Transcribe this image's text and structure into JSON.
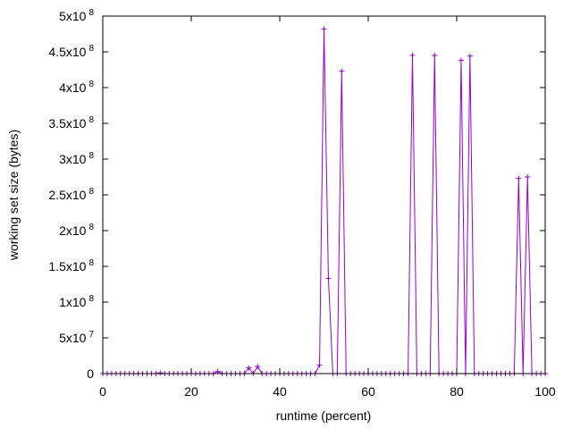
{
  "chart_data": {
    "type": "line",
    "title": "",
    "xlabel": "runtime (percent)",
    "ylabel": "working set size (bytes)",
    "xlim": [
      0,
      100
    ],
    "ylim": [
      0,
      500000000
    ],
    "x_ticks": [
      {
        "value": 0,
        "label": "0"
      },
      {
        "value": 20,
        "label": "20"
      },
      {
        "value": 40,
        "label": "40"
      },
      {
        "value": 60,
        "label": "60"
      },
      {
        "value": 80,
        "label": "80"
      },
      {
        "value": 100,
        "label": "100"
      }
    ],
    "y_ticks": [
      {
        "value": 0,
        "mant": "0",
        "exp": ""
      },
      {
        "value": 50000000,
        "mant": "5x10",
        "exp": "7"
      },
      {
        "value": 100000000,
        "mant": "1x10",
        "exp": "8"
      },
      {
        "value": 150000000,
        "mant": "1.5x10",
        "exp": "8"
      },
      {
        "value": 200000000,
        "mant": "2x10",
        "exp": "8"
      },
      {
        "value": 250000000,
        "mant": "2.5x10",
        "exp": "8"
      },
      {
        "value": 300000000,
        "mant": "3x10",
        "exp": "8"
      },
      {
        "value": 350000000,
        "mant": "3.5x10",
        "exp": "8"
      },
      {
        "value": 400000000,
        "mant": "4x10",
        "exp": "8"
      },
      {
        "value": 450000000,
        "mant": "4.5x10",
        "exp": "8"
      },
      {
        "value": 500000000,
        "mant": "5x10",
        "exp": "8"
      }
    ],
    "grid": false,
    "legend": "none",
    "series": [
      {
        "color": "#9400d3",
        "marker": "plus",
        "points": [
          [
            0,
            0
          ],
          [
            1,
            0
          ],
          [
            2,
            0
          ],
          [
            3,
            0
          ],
          [
            4,
            0
          ],
          [
            5,
            0
          ],
          [
            6,
            0
          ],
          [
            7,
            0
          ],
          [
            8,
            0
          ],
          [
            9,
            0
          ],
          [
            10,
            0
          ],
          [
            11,
            0
          ],
          [
            12,
            0
          ],
          [
            13,
            1000000
          ],
          [
            14,
            0
          ],
          [
            15,
            0
          ],
          [
            16,
            0
          ],
          [
            17,
            0
          ],
          [
            18,
            0
          ],
          [
            19,
            0
          ],
          [
            20,
            0
          ],
          [
            21,
            0
          ],
          [
            22,
            0
          ],
          [
            23,
            0
          ],
          [
            24,
            0
          ],
          [
            25,
            0
          ],
          [
            26,
            3000000
          ],
          [
            27,
            0
          ],
          [
            28,
            0
          ],
          [
            29,
            0
          ],
          [
            30,
            0
          ],
          [
            31,
            0
          ],
          [
            32,
            0
          ],
          [
            33,
            8000000
          ],
          [
            34,
            0
          ],
          [
            35,
            10000000
          ],
          [
            36,
            0
          ],
          [
            37,
            0
          ],
          [
            38,
            0
          ],
          [
            39,
            0
          ],
          [
            40,
            0
          ],
          [
            41,
            0
          ],
          [
            42,
            0
          ],
          [
            43,
            0
          ],
          [
            44,
            0
          ],
          [
            45,
            0
          ],
          [
            46,
            0
          ],
          [
            47,
            0
          ],
          [
            48,
            0
          ],
          [
            49,
            12000000
          ],
          [
            50,
            482000000
          ],
          [
            51,
            133000000
          ],
          [
            52,
            0
          ],
          [
            53,
            0
          ],
          [
            54,
            423000000
          ],
          [
            55,
            0
          ],
          [
            56,
            0
          ],
          [
            57,
            0
          ],
          [
            58,
            0
          ],
          [
            59,
            0
          ],
          [
            60,
            0
          ],
          [
            61,
            0
          ],
          [
            62,
            0
          ],
          [
            63,
            0
          ],
          [
            64,
            0
          ],
          [
            65,
            0
          ],
          [
            66,
            0
          ],
          [
            67,
            0
          ],
          [
            68,
            0
          ],
          [
            69,
            0
          ],
          [
            70,
            445000000
          ],
          [
            71,
            0
          ],
          [
            72,
            0
          ],
          [
            73,
            0
          ],
          [
            74,
            0
          ],
          [
            75,
            445000000
          ],
          [
            76,
            0
          ],
          [
            77,
            0
          ],
          [
            78,
            0
          ],
          [
            79,
            0
          ],
          [
            80,
            0
          ],
          [
            81,
            438000000
          ],
          [
            82,
            0
          ],
          [
            83,
            444000000
          ],
          [
            84,
            0
          ],
          [
            85,
            0
          ],
          [
            86,
            0
          ],
          [
            87,
            0
          ],
          [
            88,
            0
          ],
          [
            89,
            0
          ],
          [
            90,
            0
          ],
          [
            91,
            0
          ],
          [
            92,
            0
          ],
          [
            93,
            0
          ],
          [
            94,
            273000000
          ],
          [
            95,
            0
          ],
          [
            96,
            275000000
          ],
          [
            97,
            0
          ],
          [
            98,
            0
          ],
          [
            99,
            0
          ],
          [
            100,
            0
          ]
        ]
      }
    ]
  }
}
